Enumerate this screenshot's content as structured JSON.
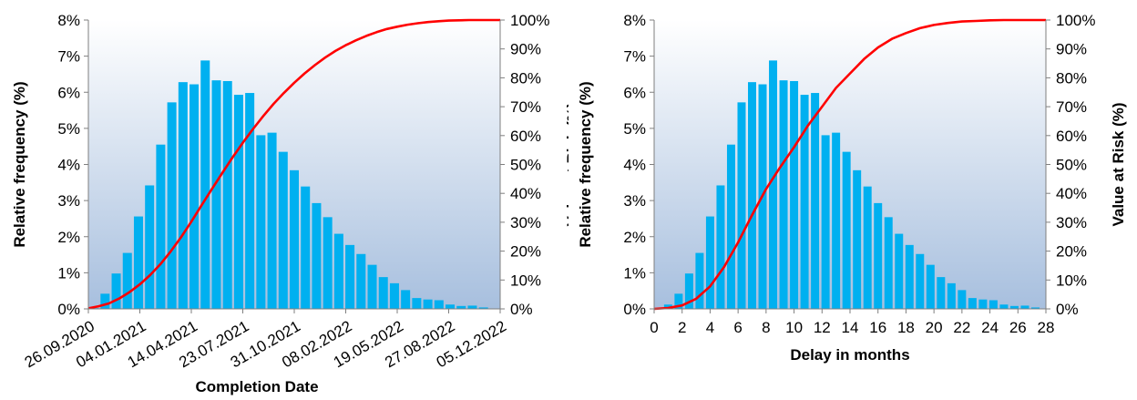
{
  "chart_data": [
    {
      "type": "bar",
      "title": "",
      "xlabel": "Completion Date",
      "ylabel": "Relative frequency (%)",
      "y2label": "Value at Risk (%)",
      "ylim": [
        0,
        8
      ],
      "y2lim": [
        0,
        100
      ],
      "yticks": [
        "0%",
        "1%",
        "2%",
        "3%",
        "4%",
        "5%",
        "6%",
        "7%",
        "8%"
      ],
      "y2ticks": [
        "0%",
        "10%",
        "20%",
        "30%",
        "40%",
        "50%",
        "60%",
        "70%",
        "80%",
        "90%",
        "100%"
      ],
      "xtick_labels": [
        "26.09.2020",
        "04.01.2021",
        "14.04.2021",
        "23.07.2021",
        "31.10.2021",
        "08.02.2022",
        "19.05.2022",
        "27.08.2022",
        "05.12.2022"
      ],
      "grid": false,
      "background": "vertical gradient white to light blue",
      "series": [
        {
          "type": "bar",
          "axis": "left",
          "color": "#00b0f0",
          "values": [
            0.02,
            0.42,
            0.98,
            1.55,
            2.56,
            3.42,
            4.55,
            5.72,
            6.28,
            6.22,
            6.88,
            6.33,
            6.31,
            5.93,
            5.98,
            4.81,
            4.88,
            4.35,
            3.84,
            3.39,
            2.93,
            2.54,
            2.08,
            1.77,
            1.52,
            1.22,
            0.88,
            0.71,
            0.52,
            0.3,
            0.26,
            0.24,
            0.12,
            0.08,
            0.09,
            0.04,
            0.01
          ]
        },
        {
          "type": "line",
          "axis": "right",
          "color": "#ff0000",
          "values": [
            0.2,
            0.9,
            1.9,
            3.6,
            5.8,
            8.5,
            11.7,
            15.5,
            19.9,
            24.8,
            30.2,
            35.9,
            41.5,
            47.0,
            52.4,
            57.5,
            62.3,
            66.8,
            71.0,
            74.8,
            78.3,
            81.5,
            84.4,
            87.0,
            89.3,
            91.3,
            93.0,
            94.5,
            95.8,
            96.9,
            97.7,
            98.4,
            98.9,
            99.3,
            99.6,
            99.8,
            99.9,
            100.0,
            100.0,
            100.0,
            100.0
          ]
        }
      ]
    },
    {
      "type": "bar",
      "title": "",
      "xlabel": "Delay in months",
      "ylabel": "Relative frequency (%)",
      "y2label": "Value at Risk (%)",
      "xlim": [
        0,
        28
      ],
      "ylim": [
        0,
        8
      ],
      "y2lim": [
        0,
        100
      ],
      "xticks": [
        "0",
        "2",
        "4",
        "6",
        "8",
        "10",
        "12",
        "14",
        "16",
        "18",
        "20",
        "22",
        "24",
        "26",
        "28"
      ],
      "yticks": [
        "0%",
        "1%",
        "2%",
        "3%",
        "4%",
        "5%",
        "6%",
        "7%",
        "8%"
      ],
      "y2ticks": [
        "0%",
        "10%",
        "20%",
        "30%",
        "40%",
        "50%",
        "60%",
        "70%",
        "80%",
        "90%",
        "100%"
      ],
      "grid": false,
      "background": "vertical gradient white to light blue",
      "series": [
        {
          "type": "bar",
          "axis": "left",
          "color": "#00b0f0",
          "x": [
            1.0,
            1.75,
            2.5,
            3.25,
            4.0,
            4.75,
            5.5,
            6.25,
            7.0,
            7.75,
            8.5,
            9.25,
            10.0,
            10.75,
            11.5,
            12.25,
            13.0,
            13.75,
            14.5,
            15.25,
            16.0,
            16.75,
            17.5,
            18.25,
            19.0,
            19.75,
            20.5,
            21.25,
            22.0,
            22.75,
            23.5,
            24.25,
            25.0,
            25.75,
            26.5,
            27.25
          ],
          "values": [
            0.12,
            0.42,
            0.98,
            1.55,
            2.56,
            3.42,
            4.55,
            5.72,
            6.28,
            6.22,
            6.88,
            6.33,
            6.31,
            5.93,
            5.98,
            4.81,
            4.88,
            4.35,
            3.84,
            3.39,
            2.93,
            2.54,
            2.08,
            1.77,
            1.52,
            1.22,
            0.88,
            0.71,
            0.52,
            0.3,
            0.26,
            0.24,
            0.12,
            0.08,
            0.09,
            0.04
          ]
        },
        {
          "type": "line",
          "axis": "right",
          "color": "#ff0000",
          "x": [
            0,
            1,
            2,
            3,
            4,
            5,
            6,
            7,
            8,
            9,
            10,
            11,
            12,
            13,
            14,
            15,
            16,
            17,
            18,
            19,
            20,
            21,
            22,
            23,
            24,
            25,
            26,
            27,
            28
          ],
          "values": [
            0.0,
            0.3,
            1.2,
            3.5,
            7.8,
            14.5,
            23.0,
            32.5,
            41.5,
            49.0,
            56.0,
            63.5,
            70.0,
            76.5,
            81.5,
            86.5,
            90.5,
            93.5,
            95.5,
            97.2,
            98.3,
            99.0,
            99.5,
            99.7,
            99.9,
            100.0,
            100.0,
            100.0,
            100.0
          ]
        }
      ]
    }
  ]
}
